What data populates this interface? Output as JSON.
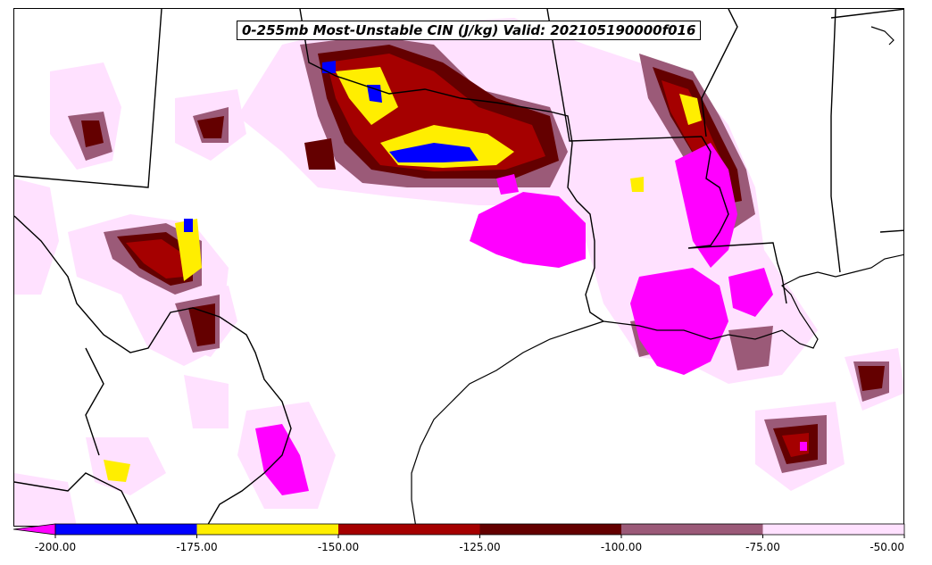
{
  "title": "0-255mb Most-Unstable CIN (J/kg) Valid: 202105190000f016",
  "colorbar": {
    "ticks": [
      "-200.00",
      "-175.00",
      "-150.00",
      "-125.00",
      "-100.00",
      "-75.00",
      "-50.00"
    ],
    "extend": "min",
    "extend_color": "#ff00ff",
    "segments": [
      {
        "range": "-200 to -175",
        "color": "#0000ff"
      },
      {
        "range": "-175 to -150",
        "color": "#ffee00"
      },
      {
        "range": "-150 to -125",
        "color": "#a50000"
      },
      {
        "range": "-125 to -100",
        "color": "#640000"
      },
      {
        "range": "-100 to -75",
        "color": "#9b5a78"
      },
      {
        "range": "-75 to -50",
        "color": "#ffe1ff"
      }
    ]
  },
  "colors": {
    "magenta": "#ff00ff",
    "blue": "#0000ff",
    "yellow": "#ffee00",
    "red": "#a50000",
    "dark_red": "#640000",
    "mauve": "#9b5a78",
    "light_pink": "#ffe1ff",
    "borders": "#000000"
  }
}
